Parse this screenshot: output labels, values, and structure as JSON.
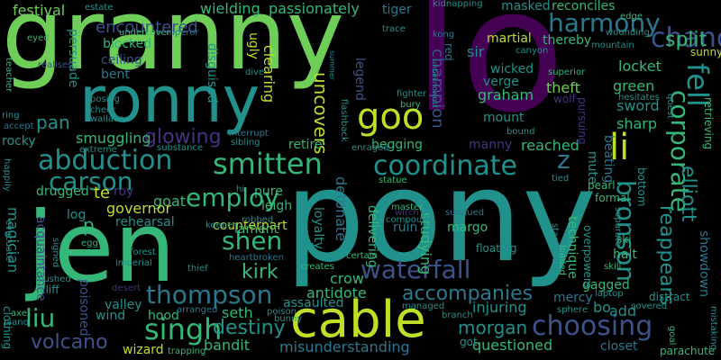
{
  "colors": {
    "background": "#000000",
    "yellow_green": "#bddf26",
    "light_green": "#6ece58",
    "green": "#35b779",
    "teal": "#21918c",
    "blue": "#3b528b",
    "dark_blue": "#46327e",
    "purple": "#440154",
    "mid_teal": "#2a788e"
  },
  "words": [
    {
      "text": "granny",
      "color": "#6ece58"
    },
    {
      "text": "lo",
      "color": "#440154"
    },
    {
      "text": "pony",
      "color": "#21918c"
    },
    {
      "text": "jen",
      "color": "#35b779"
    },
    {
      "text": "ronny",
      "color": "#21918c"
    },
    {
      "text": "cable",
      "color": "#bddf26"
    },
    {
      "text": "goo",
      "color": "#bddf26"
    },
    {
      "text": "li",
      "color": "#bddf26"
    },
    {
      "text": "harmony",
      "color": "#2a788e"
    },
    {
      "text": "chang",
      "color": "#3b528b"
    },
    {
      "text": "split",
      "color": "#35b779"
    },
    {
      "text": "coordinate",
      "color": "#21918c"
    },
    {
      "text": "z",
      "color": "#2a788e"
    },
    {
      "text": "smitten",
      "color": "#35b779"
    },
    {
      "text": "abduction",
      "color": "#21918c"
    },
    {
      "text": "carson",
      "color": "#21918c"
    },
    {
      "text": "employ",
      "color": "#35b779"
    },
    {
      "text": "singh",
      "color": "#35b779"
    },
    {
      "text": "waterfall",
      "color": "#3b528b"
    },
    {
      "text": "thompson",
      "color": "#2a788e"
    },
    {
      "text": "shen",
      "color": "#35b779"
    },
    {
      "text": "kirk",
      "color": "#35b779"
    },
    {
      "text": "destiny",
      "color": "#21918c"
    },
    {
      "text": "choosing",
      "color": "#3b528b"
    },
    {
      "text": "bronson",
      "color": "#21918c"
    },
    {
      "text": "corporate",
      "color": "#35b779"
    },
    {
      "text": "fell",
      "color": "#21918c"
    },
    {
      "text": "elliott",
      "color": "#21918c"
    },
    {
      "text": "reappears",
      "color": "#21918c"
    },
    {
      "text": "accompanies",
      "color": "#2a788e"
    },
    {
      "text": "morgan",
      "color": "#21918c"
    },
    {
      "text": "liu",
      "color": "#35b779"
    },
    {
      "text": "volcano",
      "color": "#3b528b"
    },
    {
      "text": "glowing",
      "color": "#46327e"
    },
    {
      "text": "festival",
      "color": "#6ece58"
    },
    {
      "text": "encountered",
      "color": "#3b528b"
    },
    {
      "text": "wielding",
      "color": "#35b779"
    },
    {
      "text": "passionately",
      "color": "#35b779"
    },
    {
      "text": "tiger",
      "color": "#2a788e"
    },
    {
      "text": "masked",
      "color": "#21918c"
    },
    {
      "text": "reconciles",
      "color": "#35b779"
    },
    {
      "text": "uncovers",
      "color": "#bddf26"
    },
    {
      "text": "detonate",
      "color": "#2a788e"
    },
    {
      "text": "pan",
      "color": "#21918c"
    },
    {
      "text": "smuggling",
      "color": "#35b779"
    },
    {
      "text": "te",
      "color": "#bddf26"
    },
    {
      "text": "goat",
      "color": "#35b779"
    },
    {
      "text": "counterpart",
      "color": "#bddf26"
    },
    {
      "text": "lament",
      "color": "#35b779"
    },
    {
      "text": "crow",
      "color": "#35b779"
    },
    {
      "text": "antidote",
      "color": "#35b779"
    },
    {
      "text": "injuring",
      "color": "#21918c"
    },
    {
      "text": "questioned",
      "color": "#35b779"
    },
    {
      "text": "misunderstanding",
      "color": "#2a788e"
    },
    {
      "text": "bandit",
      "color": "#35b779"
    },
    {
      "text": "seth",
      "color": "#35b779"
    },
    {
      "text": "magician",
      "color": "#21918c"
    },
    {
      "text": "acquaintance",
      "color": "#3b528b"
    },
    {
      "text": "poisoned",
      "color": "#3b528b"
    },
    {
      "text": "valley",
      "color": "#21918c"
    },
    {
      "text": "hood",
      "color": "#35b779"
    },
    {
      "text": "wizard",
      "color": "#bddf26"
    },
    {
      "text": "harmony",
      "color": "#2a788e"
    },
    {
      "text": "graham",
      "color": "#35b779"
    },
    {
      "text": "mount",
      "color": "#21918c"
    },
    {
      "text": "reached",
      "color": "#35b779"
    },
    {
      "text": "theft",
      "color": "#6ece58"
    },
    {
      "text": "green",
      "color": "#35b779"
    },
    {
      "text": "sword",
      "color": "#21918c"
    },
    {
      "text": "sharp",
      "color": "#35b779"
    },
    {
      "text": "mercy",
      "color": "#2a788e"
    },
    {
      "text": "add",
      "color": "#21918c"
    },
    {
      "text": "bo",
      "color": "#21918c"
    },
    {
      "text": "gagged",
      "color": "#35b779"
    },
    {
      "text": "halt",
      "color": "#35b779"
    },
    {
      "text": "closet",
      "color": "#2a788e"
    },
    {
      "text": "parachute",
      "color": "#35b779"
    },
    {
      "text": "martial",
      "color": "#bddf26"
    },
    {
      "text": "locket",
      "color": "#35b779"
    },
    {
      "text": "sunny",
      "color": "#bddf26"
    },
    {
      "text": "thereby",
      "color": "#35b779"
    },
    {
      "text": "wicked",
      "color": "#21918c"
    },
    {
      "text": "verge",
      "color": "#21918c"
    },
    {
      "text": "sir",
      "color": "#21918c"
    },
    {
      "text": "red",
      "color": "#2a788e"
    },
    {
      "text": "champion",
      "color": "#3b528b"
    },
    {
      "text": "legend",
      "color": "#3b528b"
    },
    {
      "text": "clearing",
      "color": "#bddf26"
    },
    {
      "text": "ugly",
      "color": "#bddf26"
    },
    {
      "text": "disguised",
      "color": "#21918c"
    },
    {
      "text": "blocked",
      "color": "#35b779"
    },
    {
      "text": "ceiling",
      "color": "#3b528b"
    },
    {
      "text": "bent",
      "color": "#2a788e"
    },
    {
      "text": "persuade",
      "color": "#21918c"
    },
    {
      "text": "undercover",
      "color": "#35b779"
    },
    {
      "text": "emperor",
      "color": "#2a788e"
    },
    {
      "text": "wallace",
      "color": "#21918c"
    },
    {
      "text": "posing",
      "color": "#21918c"
    },
    {
      "text": "cheer",
      "color": "#21918c"
    },
    {
      "text": "rocky",
      "color": "#21918c"
    },
    {
      "text": "accept",
      "color": "#2a788e"
    },
    {
      "text": "ring",
      "color": "#21918c"
    },
    {
      "text": "teacher",
      "color": "#35b779"
    },
    {
      "text": "eyed",
      "color": "#35b779"
    },
    {
      "text": "realises",
      "color": "#3b528b"
    },
    {
      "text": "p",
      "color": "#35b779"
    },
    {
      "text": "log",
      "color": "#21918c"
    },
    {
      "text": "drugged",
      "color": "#35b779"
    },
    {
      "text": "roy",
      "color": "#46327e"
    },
    {
      "text": "governor",
      "color": "#bddf26"
    },
    {
      "text": "rehearsal",
      "color": "#21918c"
    },
    {
      "text": "pure",
      "color": "#35b779"
    },
    {
      "text": "leigh",
      "color": "#35b779"
    },
    {
      "text": "loyalty",
      "color": "#21918c"
    },
    {
      "text": "delivering",
      "color": "#35b779"
    },
    {
      "text": "studying",
      "color": "#35b779"
    },
    {
      "text": "ruin",
      "color": "#2a788e"
    },
    {
      "text": "margo",
      "color": "#35b779"
    },
    {
      "text": "retire",
      "color": "#35b779"
    },
    {
      "text": "begging",
      "color": "#35b779"
    },
    {
      "text": "manny",
      "color": "#46327e"
    },
    {
      "text": "mute",
      "color": "#21918c"
    },
    {
      "text": "beating",
      "color": "#2a788e"
    },
    {
      "text": "technique",
      "color": "#35b779"
    },
    {
      "text": "bottom",
      "color": "#21918c"
    },
    {
      "text": "showdown",
      "color": "#2a788e"
    },
    {
      "text": "retrieving",
      "color": "#35b779"
    },
    {
      "text": "formal",
      "color": "#35b779"
    },
    {
      "text": "pearl",
      "color": "#35b779"
    },
    {
      "text": "ski",
      "color": "#35b779"
    },
    {
      "text": "skill",
      "color": "#35b779"
    },
    {
      "text": "overpowers",
      "color": "#21918c"
    },
    {
      "text": "laptop",
      "color": "#21918c"
    },
    {
      "text": "distract",
      "color": "#21918c"
    },
    {
      "text": "covered",
      "color": "#21918c"
    },
    {
      "text": "sphere",
      "color": "#21918c"
    },
    {
      "text": "goal",
      "color": "#35b779"
    },
    {
      "text": "mistaking",
      "color": "#21918c"
    },
    {
      "text": "interrupt",
      "color": "#2a788e"
    },
    {
      "text": "sibling",
      "color": "#21918c"
    },
    {
      "text": "substance",
      "color": "#21918c"
    },
    {
      "text": "enraged",
      "color": "#21918c"
    },
    {
      "text": "flashback",
      "color": "#21918c"
    },
    {
      "text": "master",
      "color": "#35b779"
    },
    {
      "text": "subdued",
      "color": "#2a788e"
    },
    {
      "text": "witch",
      "color": "#46327e"
    },
    {
      "text": "compound",
      "color": "#21918c"
    },
    {
      "text": "floating",
      "color": "#21918c"
    },
    {
      "text": "statue",
      "color": "#35b779"
    },
    {
      "text": "certain",
      "color": "#35b779"
    },
    {
      "text": "creates",
      "color": "#35b779"
    },
    {
      "text": "poison",
      "color": "#21918c"
    },
    {
      "text": "bunny",
      "color": "#21918c"
    },
    {
      "text": "heartbroken",
      "color": "#2a788e"
    },
    {
      "text": "robbed",
      "color": "#21918c"
    },
    {
      "text": "keeper",
      "color": "#21918c"
    },
    {
      "text": "trapping",
      "color": "#35b779"
    },
    {
      "text": "thief",
      "color": "#21918c"
    },
    {
      "text": "imperial",
      "color": "#21918c"
    },
    {
      "text": "forest",
      "color": "#21918c"
    },
    {
      "text": "egg",
      "color": "#35b779"
    },
    {
      "text": "signed",
      "color": "#21918c"
    },
    {
      "text": "pushed",
      "color": "#21918c"
    },
    {
      "text": "cliff",
      "color": "#21918c"
    },
    {
      "text": "axe",
      "color": "#35b779"
    },
    {
      "text": "piano",
      "color": "#21918c"
    },
    {
      "text": "clothing",
      "color": "#21918c"
    },
    {
      "text": "evacuate",
      "color": "#21918c"
    },
    {
      "text": "happily",
      "color": "#21918c"
    },
    {
      "text": "wind",
      "color": "#21918c"
    },
    {
      "text": "desert",
      "color": "#46327e"
    },
    {
      "text": "arranged",
      "color": "#2a788e"
    },
    {
      "text": "assaulted",
      "color": "#21918c"
    },
    {
      "text": "managed",
      "color": "#21918c"
    },
    {
      "text": "branch",
      "color": "#21918c"
    },
    {
      "text": "got",
      "color": "#21918c"
    },
    {
      "text": "loaded",
      "color": "#35b779"
    },
    {
      "text": "standard",
      "color": "#21918c"
    },
    {
      "text": "tied",
      "color": "#21918c"
    },
    {
      "text": "separate",
      "color": "#21918c"
    },
    {
      "text": "hesitates",
      "color": "#21918c"
    },
    {
      "text": "quest",
      "color": "#21918c"
    },
    {
      "text": "superior",
      "color": "#35b779"
    },
    {
      "text": "mountain",
      "color": "#21918c"
    },
    {
      "text": "wounding",
      "color": "#21918c"
    },
    {
      "text": "edge",
      "color": "#35b779"
    },
    {
      "text": "canyon",
      "color": "#21918c"
    },
    {
      "text": "kidnapping",
      "color": "#21918c"
    },
    {
      "text": "kong",
      "color": "#2a788e"
    },
    {
      "text": "trace",
      "color": "#21918c"
    },
    {
      "text": "estate",
      "color": "#21918c"
    },
    {
      "text": "dive",
      "color": "#21918c"
    },
    {
      "text": "bury",
      "color": "#35b779"
    },
    {
      "text": "fighter",
      "color": "#21918c"
    },
    {
      "text": "unbeknownst",
      "color": "#21918c"
    },
    {
      "text": "summer",
      "color": "#21918c"
    },
    {
      "text": "wolf",
      "color": "#46327e"
    },
    {
      "text": "bound",
      "color": "#21918c"
    },
    {
      "text": "pursuing",
      "color": "#46327e"
    },
    {
      "text": "extreme",
      "color": "#21918c"
    },
    {
      "text": "cheer",
      "color": "#21918c"
    },
    {
      "text": "hi",
      "color": "#21918c"
    }
  ]
}
